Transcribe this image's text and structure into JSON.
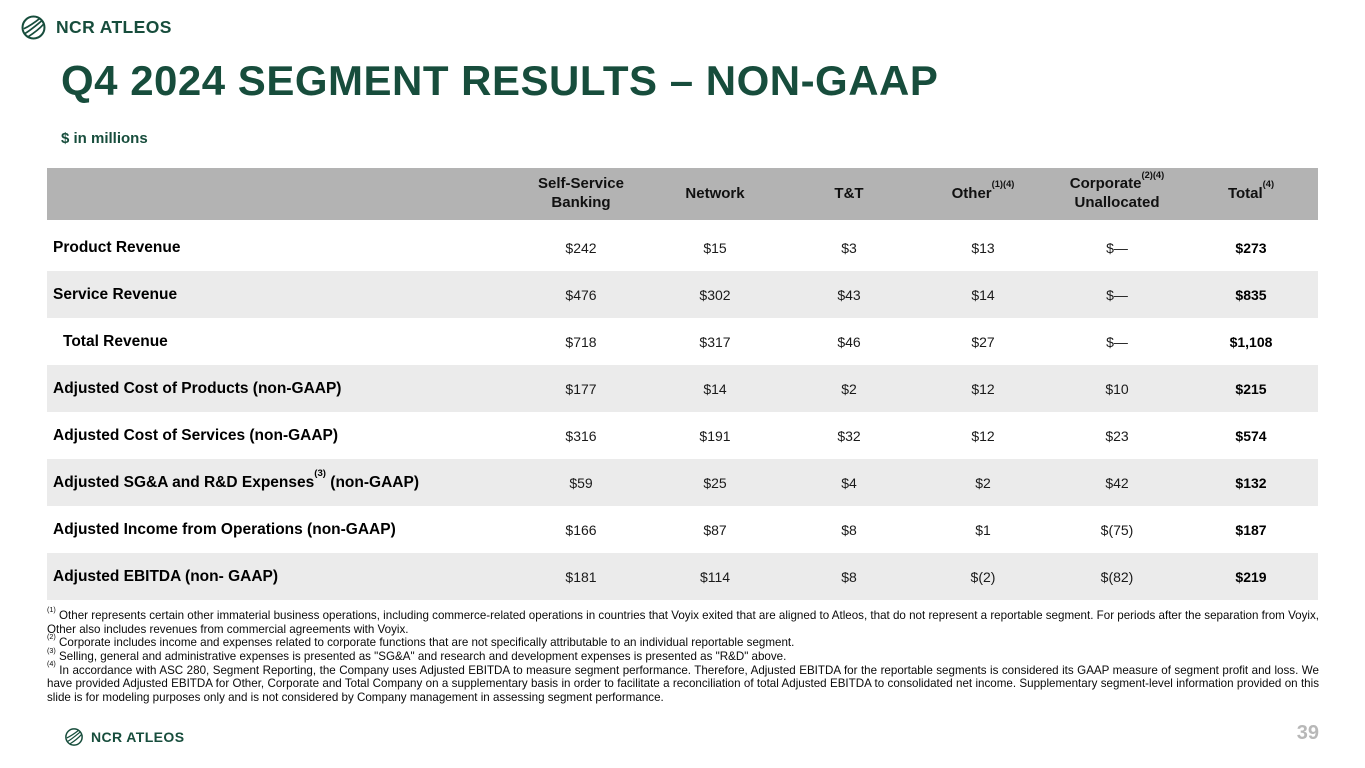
{
  "brand": {
    "name": "NCR ATLEOS"
  },
  "slide": {
    "title": "Q4 2024 SEGMENT RESULTS – NON-GAAP",
    "subtitle": "$ in millions",
    "page_number": "39"
  },
  "colors": {
    "brand_green": "#174d3c",
    "header_gray": "#b3b3b3",
    "stripe_gray": "#ebebeb",
    "page_number_gray": "#b8b8b8"
  },
  "table": {
    "columns": [
      {
        "line1": "Self-Service",
        "line2": "Banking"
      },
      {
        "line1": "Network"
      },
      {
        "line1": "T&T"
      },
      {
        "line1": "Other",
        "sup": "(1)(4)"
      },
      {
        "line1": "Corporate",
        "sup": "(2)(4)",
        "line2": "Unallocated"
      },
      {
        "line1": "Total",
        "sup": "(4)"
      }
    ],
    "rows": [
      {
        "label": "Product Revenue",
        "values": [
          "$242",
          "$15",
          "$3",
          "$13",
          "$—",
          "$273"
        ]
      },
      {
        "label": "Service Revenue",
        "values": [
          "$476",
          "$302",
          "$43",
          "$14",
          "$—",
          "$835"
        ]
      },
      {
        "label": "Total Revenue",
        "indent": true,
        "values": [
          "$718",
          "$317",
          "$46",
          "$27",
          "$—",
          "$1,108"
        ]
      },
      {
        "label": "Adjusted Cost of Products (non-GAAP)",
        "values": [
          "$177",
          "$14",
          "$2",
          "$12",
          "$10",
          "$215"
        ]
      },
      {
        "label": "Adjusted Cost of Services (non-GAAP)",
        "values": [
          "$316",
          "$191",
          "$32",
          "$12",
          "$23",
          "$574"
        ]
      },
      {
        "label": "Adjusted SG&A and R&D Expenses",
        "sup": "(3)",
        "label2": " (non-GAAP)",
        "values": [
          "$59",
          "$25",
          "$4",
          "$2",
          "$42",
          "$132"
        ]
      },
      {
        "label": "Adjusted Income from Operations (non-GAAP)",
        "values": [
          "$166",
          "$87",
          "$8",
          "$1",
          "$(75)",
          "$187"
        ]
      },
      {
        "label": "Adjusted EBITDA (non- GAAP)",
        "values": [
          "$181",
          "$114",
          "$8",
          "$(2)",
          "$(82)",
          "$219"
        ]
      }
    ]
  },
  "footnotes": [
    {
      "marker": "(1)",
      "text": "Other represents certain other immaterial business operations, including commerce-related operations in countries that Voyix exited that are aligned to Atleos, that do not represent a reportable segment. For periods after the separation from Voyix, Other also includes revenues from commercial agreements with Voyix."
    },
    {
      "marker": "(2)",
      "text": "Corporate includes income and expenses related to corporate functions that are not specifically attributable to an individual reportable segment."
    },
    {
      "marker": "(3)",
      "text": "Selling, general and administrative expenses is presented as \"SG&A\" and research and development expenses is presented as \"R&D\" above."
    },
    {
      "marker": "(4)",
      "text": "In accordance with ASC 280, Segment Reporting, the Company uses Adjusted EBITDA to measure segment performance. Therefore, Adjusted EBITDA for the reportable segments is considered its GAAP measure of segment profit and loss. We have provided Adjusted EBITDA for Other, Corporate and Total Company on a supplementary basis in order to facilitate a reconciliation of total Adjusted EBITDA to consolidated net income. Supplementary segment-level information provided on this slide is for modeling purposes only and is not considered by Company management in assessing segment performance."
    }
  ]
}
